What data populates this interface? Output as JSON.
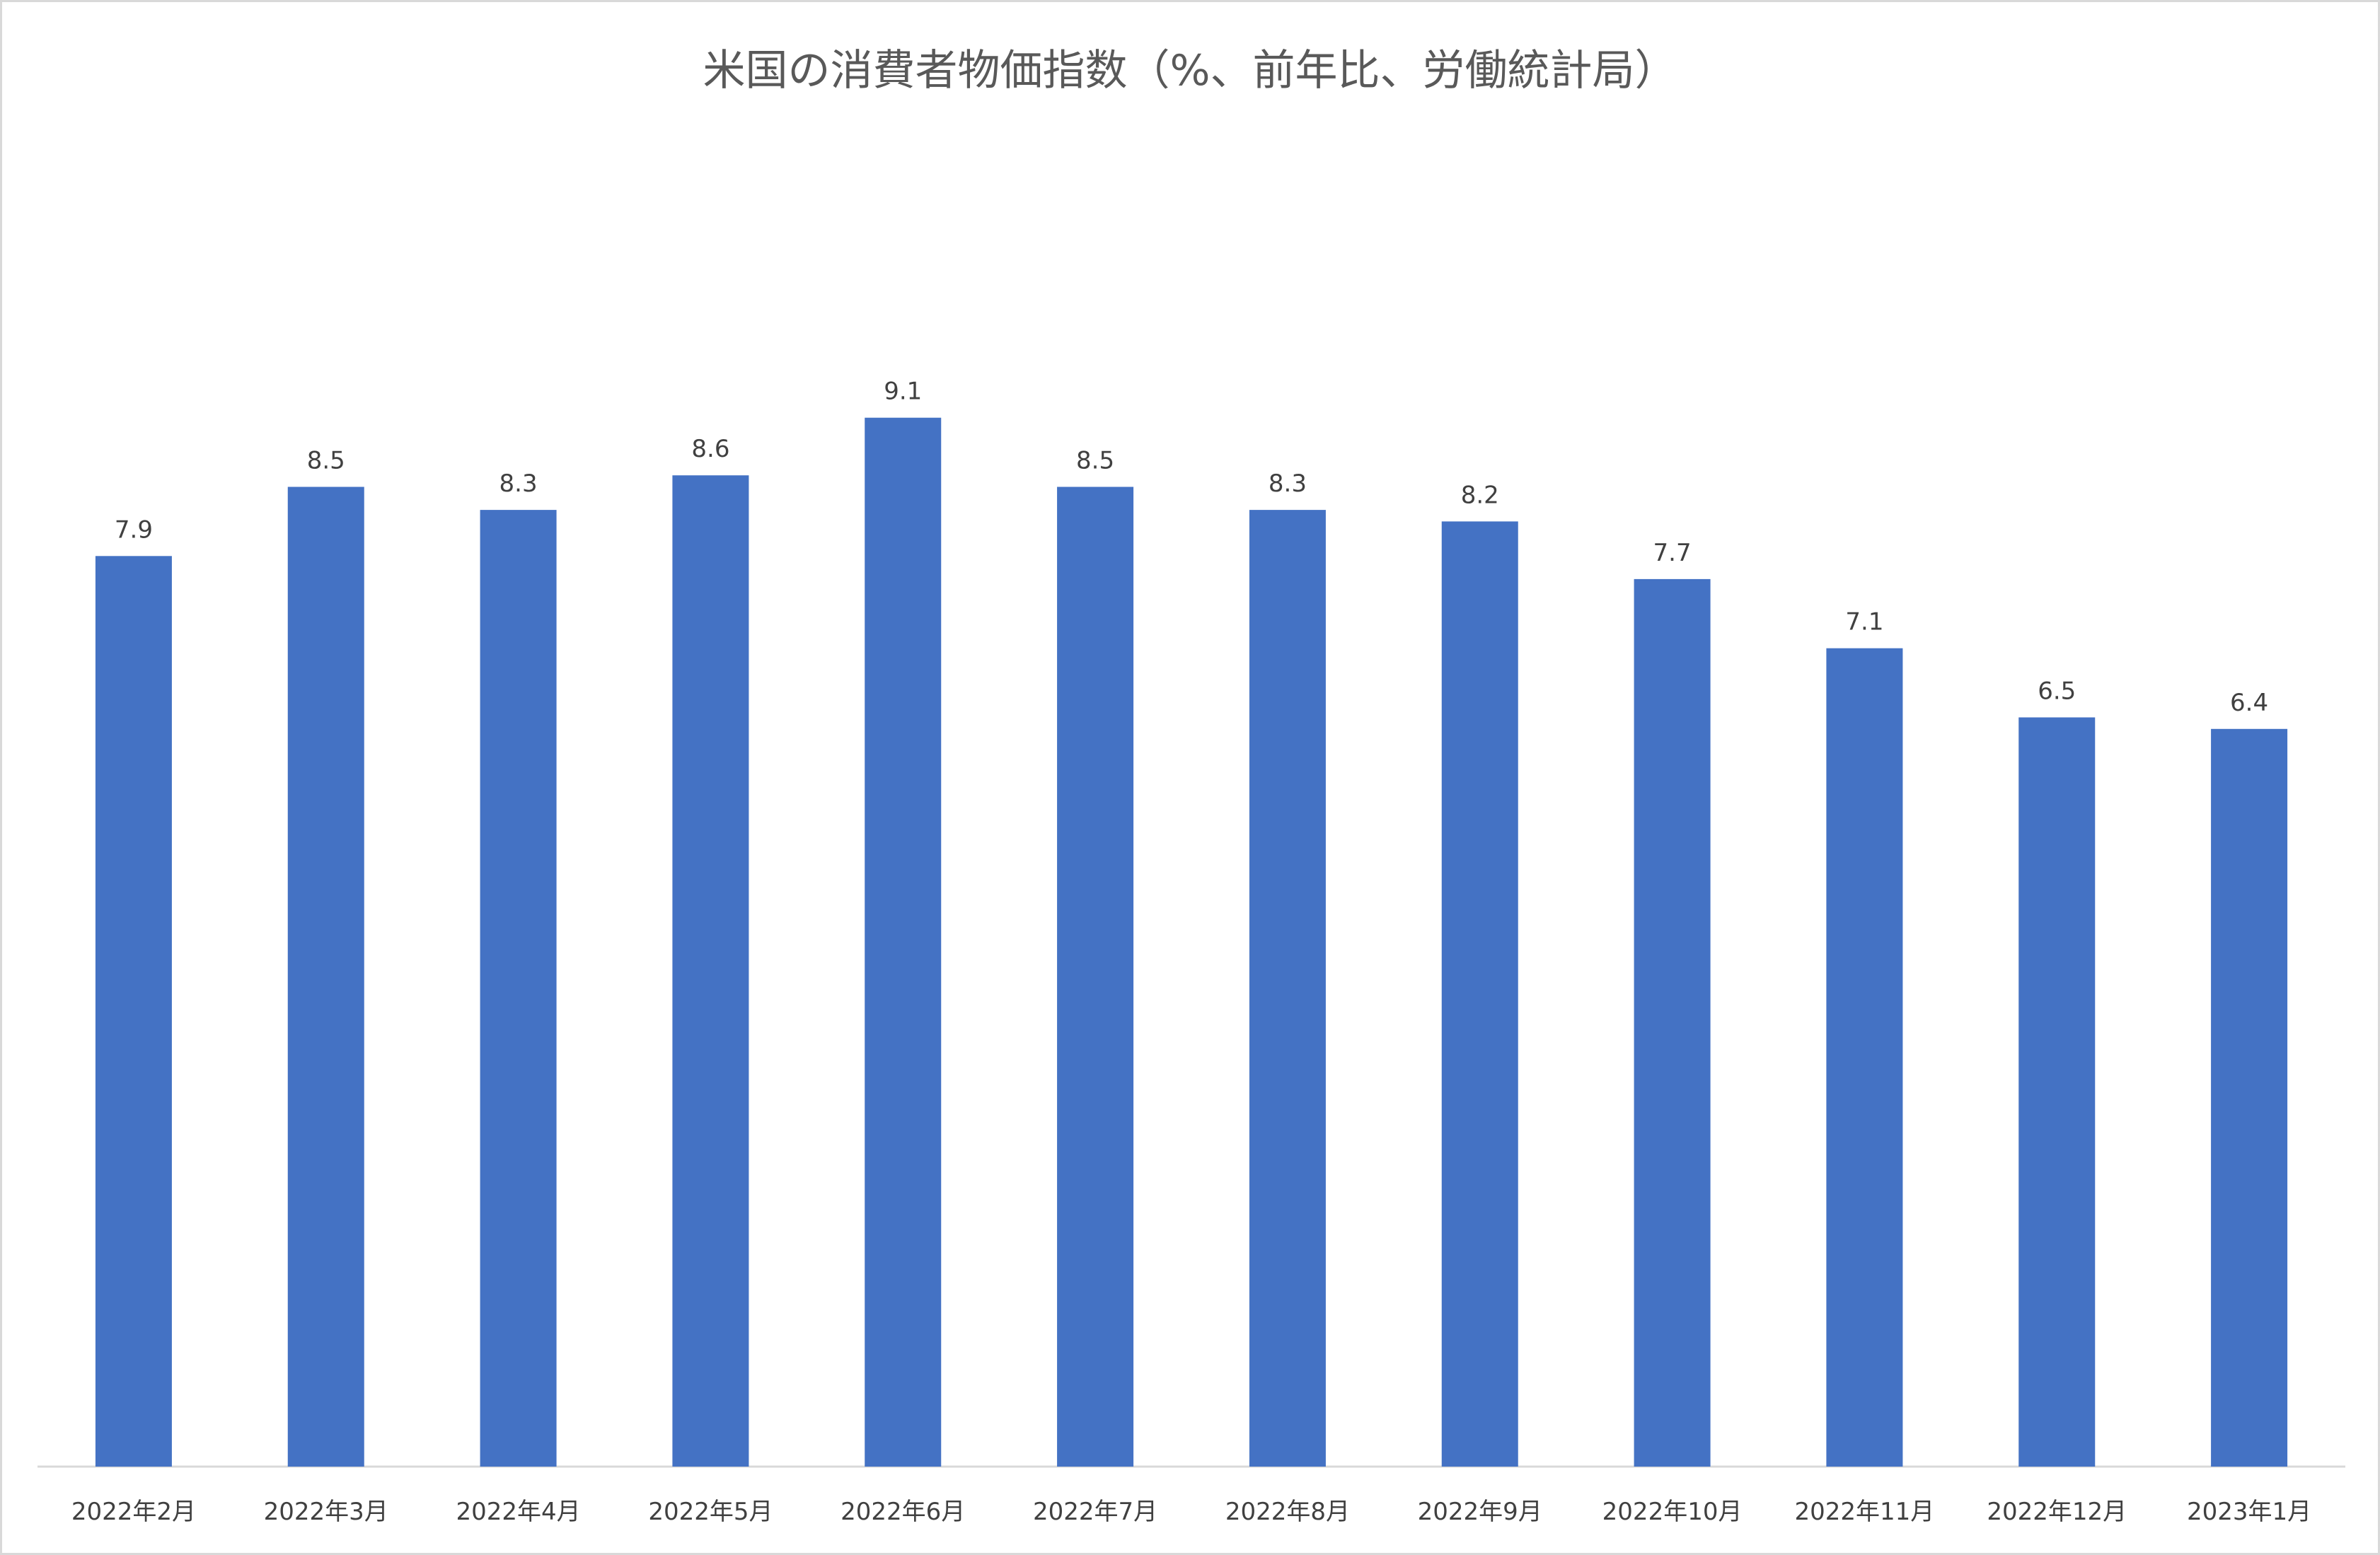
{
  "chart_data": {
    "type": "bar",
    "title": "米国の消費者物価指数（%、前年比、労働統計局）",
    "categories": [
      "2022年2月",
      "2022年3月",
      "2022年4月",
      "2022年5月",
      "2022年6月",
      "2022年7月",
      "2022年8月",
      "2022年9月",
      "2022年10月",
      "2022年11月",
      "2022年12月",
      "2023年1月"
    ],
    "values": [
      7.9,
      8.5,
      8.3,
      8.6,
      9.1,
      8.5,
      8.3,
      8.2,
      7.7,
      7.1,
      6.5,
      6.4
    ],
    "ylim": [
      0,
      10
    ],
    "data_labels": true,
    "grid": false,
    "legend": "none",
    "colors": {
      "bar": "#4472C4",
      "axis": "#d9d9d9"
    }
  }
}
